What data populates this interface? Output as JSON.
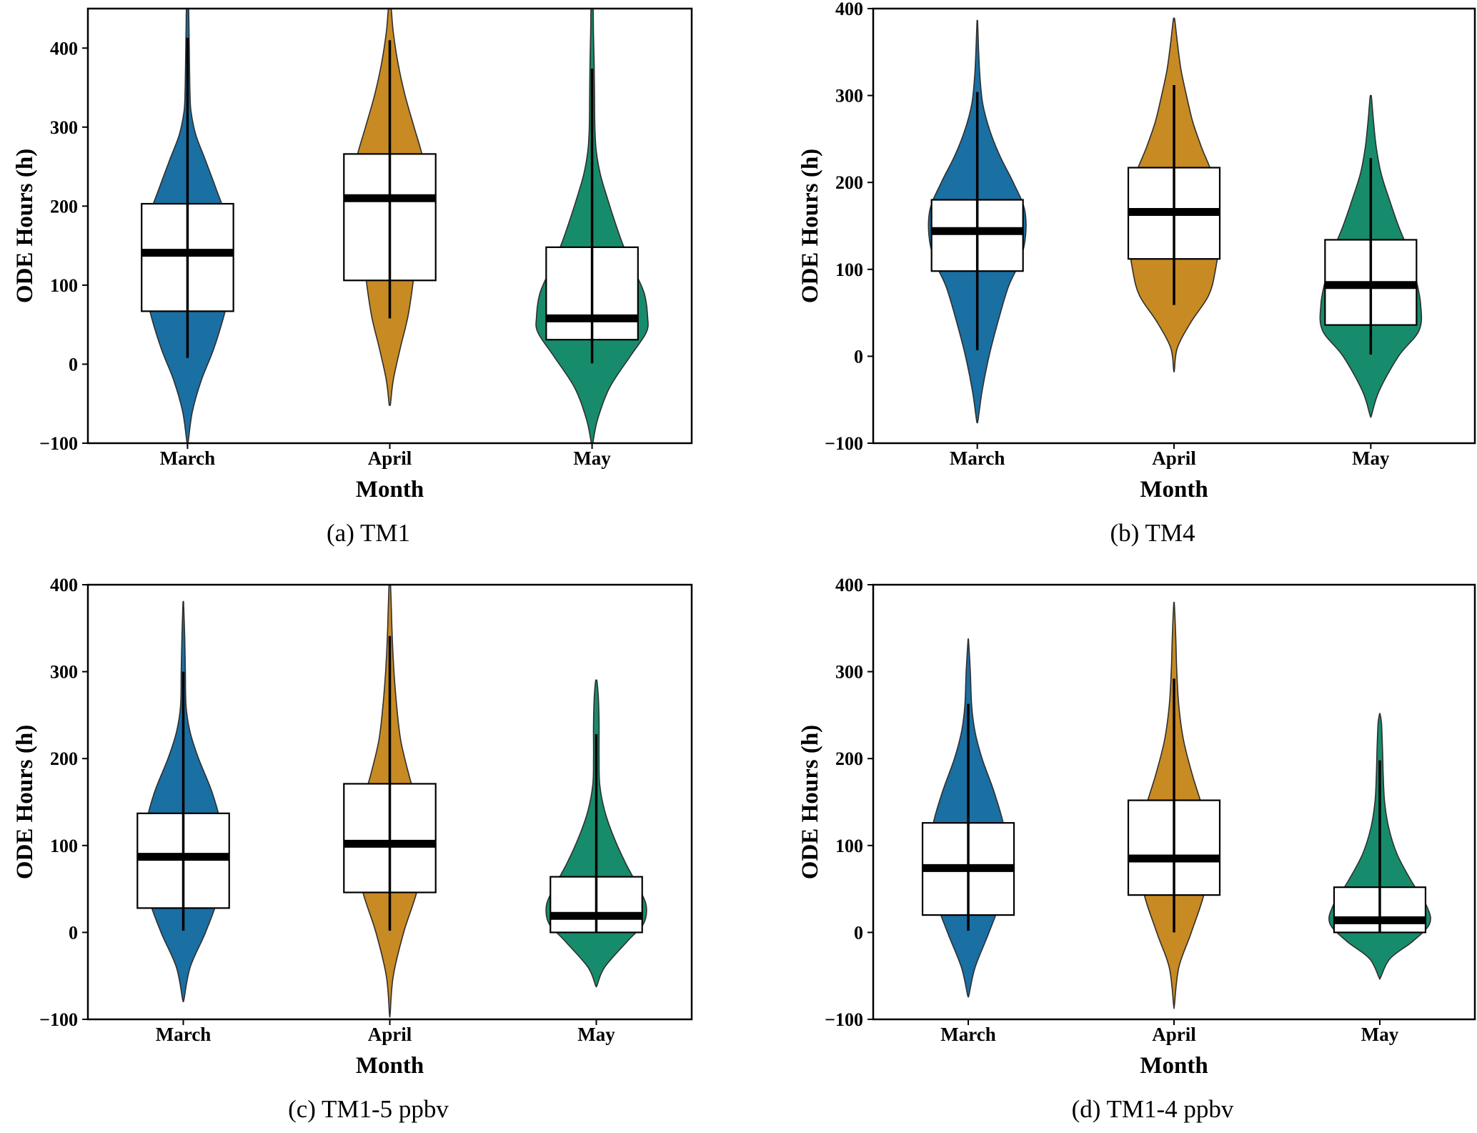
{
  "chart_data": [
    {
      "type": "violin",
      "caption": "(a) TM1",
      "xlabel": "Month",
      "ylabel": "ODE Hours (h)",
      "categories": [
        "March",
        "April",
        "May"
      ],
      "ylim": [
        -100,
        450
      ],
      "yticks": [
        -100,
        0,
        100,
        200,
        300,
        400
      ],
      "colors": [
        "#1a6fa3",
        "#c88a22",
        "#178c6c"
      ],
      "boxes": [
        {
          "q1": 67,
          "median": 141,
          "q3": 203,
          "whisker_low": 8,
          "whisker_high": 413
        },
        {
          "q1": 106,
          "median": 210,
          "q3": 266,
          "whisker_low": 58,
          "whisker_high": 410
        },
        {
          "q1": 31,
          "median": 58,
          "q3": 148,
          "whisker_low": 1,
          "whisker_high": 374
        }
      ],
      "violins": [
        {
          "min": -98,
          "max": 450,
          "profile": [
            [
              -98,
              0.01
            ],
            [
              -60,
              0.07
            ],
            [
              -20,
              0.2
            ],
            [
              20,
              0.38
            ],
            [
              70,
              0.55
            ],
            [
              100,
              0.6
            ],
            [
              140,
              0.64
            ],
            [
              180,
              0.58
            ],
            [
              220,
              0.42
            ],
            [
              260,
              0.25
            ],
            [
              290,
              0.12
            ],
            [
              320,
              0.05
            ],
            [
              345,
              0.035
            ],
            [
              370,
              0.03
            ],
            [
              400,
              0.025
            ],
            [
              430,
              0.02
            ],
            [
              450,
              0.015
            ]
          ]
        },
        {
          "min": -50,
          "max": 450,
          "profile": [
            [
              -50,
              0.01
            ],
            [
              -20,
              0.05
            ],
            [
              20,
              0.15
            ],
            [
              60,
              0.26
            ],
            [
              100,
              0.33
            ],
            [
              140,
              0.38
            ],
            [
              180,
              0.48
            ],
            [
              220,
              0.55
            ],
            [
              260,
              0.48
            ],
            [
              300,
              0.35
            ],
            [
              340,
              0.22
            ],
            [
              380,
              0.12
            ],
            [
              420,
              0.05
            ],
            [
              450,
              0.02
            ]
          ]
        },
        {
          "min": -100,
          "max": 450,
          "profile": [
            [
              -100,
              0.01
            ],
            [
              -70,
              0.08
            ],
            [
              -30,
              0.25
            ],
            [
              10,
              0.55
            ],
            [
              40,
              0.78
            ],
            [
              60,
              0.8
            ],
            [
              90,
              0.75
            ],
            [
              120,
              0.6
            ],
            [
              150,
              0.45
            ],
            [
              180,
              0.33
            ],
            [
              210,
              0.22
            ],
            [
              240,
              0.12
            ],
            [
              270,
              0.06
            ],
            [
              300,
              0.04
            ],
            [
              340,
              0.035
            ],
            [
              380,
              0.03
            ],
            [
              420,
              0.02
            ],
            [
              450,
              0.015
            ]
          ]
        }
      ]
    },
    {
      "type": "violin",
      "caption": "(b) TM4",
      "xlabel": "Month",
      "ylabel": "ODE Hours (h)",
      "categories": [
        "March",
        "April",
        "May"
      ],
      "ylim": [
        -100,
        400
      ],
      "yticks": [
        -100,
        0,
        100,
        200,
        300,
        400
      ],
      "colors": [
        "#1a6fa3",
        "#c88a22",
        "#178c6c"
      ],
      "boxes": [
        {
          "q1": 98,
          "median": 144,
          "q3": 180,
          "whisker_low": 7,
          "whisker_high": 304
        },
        {
          "q1": 112,
          "median": 166,
          "q3": 217,
          "whisker_low": 59,
          "whisker_high": 312
        },
        {
          "q1": 36,
          "median": 82,
          "q3": 134,
          "whisker_low": 2,
          "whisker_high": 228
        }
      ],
      "violins": [
        {
          "min": -74,
          "max": 384,
          "profile": [
            [
              -74,
              0.01
            ],
            [
              -40,
              0.07
            ],
            [
              0,
              0.17
            ],
            [
              40,
              0.3
            ],
            [
              80,
              0.45
            ],
            [
              110,
              0.62
            ],
            [
              140,
              0.7
            ],
            [
              170,
              0.68
            ],
            [
              200,
              0.52
            ],
            [
              230,
              0.33
            ],
            [
              260,
              0.18
            ],
            [
              290,
              0.08
            ],
            [
              320,
              0.04
            ],
            [
              350,
              0.02
            ],
            [
              384,
              0.005
            ]
          ]
        },
        {
          "min": -16,
          "max": 387,
          "profile": [
            [
              -16,
              0.005
            ],
            [
              10,
              0.05
            ],
            [
              40,
              0.25
            ],
            [
              70,
              0.5
            ],
            [
              100,
              0.6
            ],
            [
              140,
              0.66
            ],
            [
              180,
              0.63
            ],
            [
              210,
              0.55
            ],
            [
              240,
              0.4
            ],
            [
              270,
              0.27
            ],
            [
              300,
              0.18
            ],
            [
              330,
              0.1
            ],
            [
              360,
              0.05
            ],
            [
              387,
              0.01
            ]
          ]
        },
        {
          "min": -68,
          "max": 298,
          "profile": [
            [
              -68,
              0.01
            ],
            [
              -40,
              0.12
            ],
            [
              0,
              0.4
            ],
            [
              30,
              0.7
            ],
            [
              60,
              0.72
            ],
            [
              90,
              0.65
            ],
            [
              120,
              0.55
            ],
            [
              150,
              0.4
            ],
            [
              180,
              0.27
            ],
            [
              210,
              0.15
            ],
            [
              240,
              0.08
            ],
            [
              270,
              0.04
            ],
            [
              298,
              0.01
            ]
          ]
        }
      ]
    },
    {
      "type": "violin",
      "caption": "(c) TM1-5 ppbv",
      "xlabel": "Month",
      "ylabel": "ODE Hours (h)",
      "categories": [
        "March",
        "April",
        "May"
      ],
      "ylim": [
        -100,
        400
      ],
      "yticks": [
        -100,
        0,
        100,
        200,
        300,
        400
      ],
      "colors": [
        "#1a6fa3",
        "#c88a22",
        "#178c6c"
      ],
      "boxes": [
        {
          "q1": 28,
          "median": 87,
          "q3": 137,
          "whisker_low": 2,
          "whisker_high": 300
        },
        {
          "q1": 46,
          "median": 102,
          "q3": 171,
          "whisker_low": 2,
          "whisker_high": 341
        },
        {
          "q1": 0,
          "median": 19,
          "q3": 64,
          "whisker_low": 0,
          "whisker_high": 228
        }
      ],
      "violins": [
        {
          "min": -77,
          "max": 378,
          "profile": [
            [
              -77,
              0.01
            ],
            [
              -40,
              0.1
            ],
            [
              0,
              0.32
            ],
            [
              40,
              0.5
            ],
            [
              80,
              0.58
            ],
            [
              120,
              0.55
            ],
            [
              160,
              0.42
            ],
            [
              200,
              0.22
            ],
            [
              230,
              0.1
            ],
            [
              260,
              0.04
            ],
            [
              300,
              0.03
            ],
            [
              340,
              0.02
            ],
            [
              378,
              0.005
            ]
          ]
        },
        {
          "min": -94,
          "max": 400,
          "profile": [
            [
              -94,
              0.005
            ],
            [
              -50,
              0.05
            ],
            [
              0,
              0.2
            ],
            [
              50,
              0.4
            ],
            [
              100,
              0.5
            ],
            [
              140,
              0.42
            ],
            [
              180,
              0.28
            ],
            [
              220,
              0.16
            ],
            [
              260,
              0.1
            ],
            [
              300,
              0.06
            ],
            [
              340,
              0.035
            ],
            [
              380,
              0.02
            ],
            [
              400,
              0.01
            ]
          ]
        },
        {
          "min": -61,
          "max": 289,
          "profile": [
            [
              -61,
              0.01
            ],
            [
              -40,
              0.12
            ],
            [
              -10,
              0.45
            ],
            [
              10,
              0.68
            ],
            [
              30,
              0.72
            ],
            [
              50,
              0.62
            ],
            [
              80,
              0.42
            ],
            [
              110,
              0.25
            ],
            [
              140,
              0.12
            ],
            [
              170,
              0.05
            ],
            [
              200,
              0.04
            ],
            [
              240,
              0.04
            ],
            [
              270,
              0.03
            ],
            [
              289,
              0.01
            ]
          ]
        }
      ]
    },
    {
      "type": "violin",
      "caption": "(d) TM1-4 ppbv",
      "xlabel": "Month",
      "ylabel": "ODE Hours (h)",
      "categories": [
        "March",
        "April",
        "May"
      ],
      "ylim": [
        -100,
        400
      ],
      "yticks": [
        -100,
        0,
        100,
        200,
        300,
        400
      ],
      "colors": [
        "#1a6fa3",
        "#c88a22",
        "#178c6c"
      ],
      "boxes": [
        {
          "q1": 20,
          "median": 74,
          "q3": 126,
          "whisker_low": 2,
          "whisker_high": 263
        },
        {
          "q1": 43,
          "median": 85,
          "q3": 152,
          "whisker_low": 0,
          "whisker_high": 292
        },
        {
          "q1": 0,
          "median": 14,
          "q3": 52,
          "whisker_low": 0,
          "whisker_high": 198
        }
      ],
      "violins": [
        {
          "min": -72,
          "max": 335,
          "profile": [
            [
              -72,
              0.01
            ],
            [
              -40,
              0.1
            ],
            [
              0,
              0.3
            ],
            [
              40,
              0.48
            ],
            [
              80,
              0.55
            ],
            [
              120,
              0.52
            ],
            [
              160,
              0.38
            ],
            [
              200,
              0.2
            ],
            [
              230,
              0.1
            ],
            [
              260,
              0.05
            ],
            [
              300,
              0.03
            ],
            [
              335,
              0.005
            ]
          ]
        },
        {
          "min": -84,
          "max": 377,
          "profile": [
            [
              -84,
              0.005
            ],
            [
              -40,
              0.07
            ],
            [
              0,
              0.25
            ],
            [
              50,
              0.45
            ],
            [
              100,
              0.5
            ],
            [
              140,
              0.42
            ],
            [
              180,
              0.27
            ],
            [
              220,
              0.14
            ],
            [
              260,
              0.07
            ],
            [
              300,
              0.04
            ],
            [
              340,
              0.025
            ],
            [
              377,
              0.005
            ]
          ]
        },
        {
          "min": -52,
          "max": 251,
          "profile": [
            [
              -52,
              0.01
            ],
            [
              -30,
              0.15
            ],
            [
              -10,
              0.48
            ],
            [
              10,
              0.72
            ],
            [
              30,
              0.68
            ],
            [
              60,
              0.45
            ],
            [
              90,
              0.25
            ],
            [
              120,
              0.13
            ],
            [
              150,
              0.07
            ],
            [
              180,
              0.05
            ],
            [
              210,
              0.04
            ],
            [
              240,
              0.025
            ],
            [
              251,
              0.005
            ]
          ]
        }
      ]
    }
  ]
}
